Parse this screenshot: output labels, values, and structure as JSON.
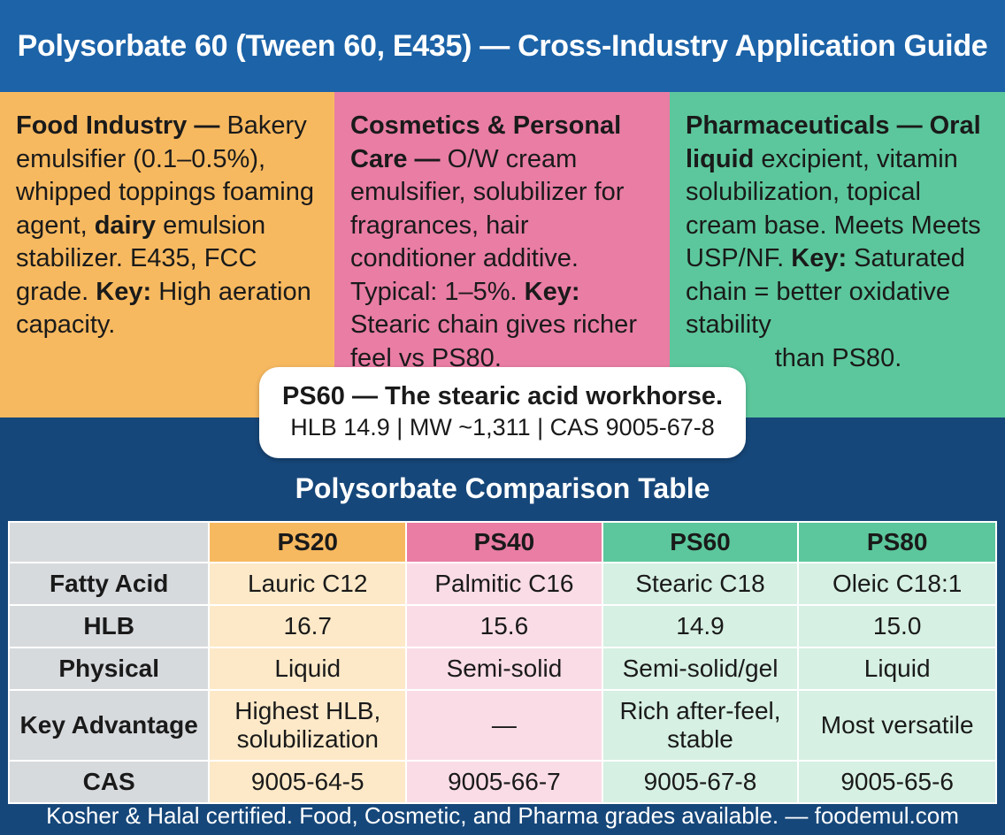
{
  "title": "Polysorbate 60 (Tween 60, E435) — Cross-Industry Application Guide",
  "colors": {
    "header_bg": "#1c63a8",
    "page_bg": "#16477a",
    "food": "#f7b960",
    "cosmetics": "#e97da4",
    "pharma": "#5cc79c",
    "label_gray": "#d7dadd"
  },
  "panels": {
    "food": {
      "heading": "Food Industry",
      "dash": " — ",
      "t1": "Bakery emulsifier (0.1–0.5%), whipped toppings foaming agent, ",
      "b1": "dairy",
      "t2": " emulsion stabilizer. E435, FCC grade. ",
      "key_label": "Key:",
      "key_text": " High aeration capacity."
    },
    "cosmetics": {
      "heading": "Cosmetics & Personal Care",
      "dash": " — ",
      "t1": "O/W cream emulsifier, solubilizer for fragrances, hair conditioner additive. Typical: 1–5%. ",
      "key_label": "Key:",
      "key_text": " Stearic chain gives richer feel vs PS80."
    },
    "pharma": {
      "heading": "Pharmaceuticals — Oral liquid",
      "t1": " excipient, vitamin solubilization, topical cream base. Meets Meets USP/NF. ",
      "key_label": "Key:",
      "key_text": " Saturated chain = better oxidative stability",
      "key_tail": "than PS80."
    }
  },
  "callout": {
    "line1": "PS60 — The stearic acid workhorse.",
    "line2": "HLB 14.9 | MW ~1,311 | CAS 9005-67-8"
  },
  "table": {
    "title": "Polysorbate Comparison Table",
    "columns": [
      "PS20",
      "PS40",
      "PS60",
      "PS80"
    ],
    "rows": [
      {
        "label": "Fatty Acid",
        "values": [
          "Lauric C12",
          "Palmitic C16",
          "Stearic C18",
          "Oleic C18:1"
        ]
      },
      {
        "label": "HLB",
        "values": [
          "16.7",
          "15.6",
          "14.9",
          "15.0"
        ]
      },
      {
        "label": "Physical",
        "values": [
          "Liquid",
          "Semi-solid",
          "Semi-solid/gel",
          "Liquid"
        ]
      },
      {
        "label": "Key Advantage",
        "values": [
          "Highest HLB, solubilization",
          "—",
          "Rich after-feel, stable",
          "Most versatile"
        ]
      },
      {
        "label": "CAS",
        "values": [
          "9005-64-5",
          "9005-66-7",
          "9005-67-8",
          "9005-65-6"
        ]
      }
    ]
  },
  "footer": "Kosher & Halal certified. Food, Cosmetic, and Pharma grades available. — foodemul.com"
}
